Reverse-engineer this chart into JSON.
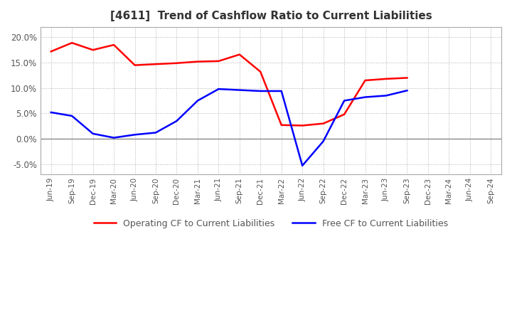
{
  "title": "[4611]  Trend of Cashflow Ratio to Current Liabilities",
  "x_labels": [
    "Jun-19",
    "Sep-19",
    "Dec-19",
    "Mar-20",
    "Jun-20",
    "Sep-20",
    "Dec-20",
    "Mar-21",
    "Jun-21",
    "Sep-21",
    "Dec-21",
    "Mar-22",
    "Jun-22",
    "Sep-22",
    "Dec-22",
    "Mar-23",
    "Jun-23",
    "Sep-23",
    "Dec-23",
    "Mar-24",
    "Jun-24",
    "Sep-24"
  ],
  "operating_cf": [
    17.2,
    18.9,
    17.5,
    18.5,
    14.5,
    14.7,
    14.9,
    15.2,
    15.3,
    16.6,
    13.2,
    2.7,
    2.6,
    3.0,
    4.8,
    11.5,
    11.8,
    12.0,
    null,
    null,
    null,
    null
  ],
  "free_cf": [
    5.2,
    4.5,
    1.0,
    0.2,
    0.8,
    1.2,
    3.5,
    7.5,
    9.8,
    9.6,
    9.4,
    9.4,
    -5.3,
    -0.5,
    7.5,
    8.2,
    8.5,
    9.5,
    null,
    null,
    null,
    null
  ],
  "operating_cf_color": "#ff0000",
  "free_cf_color": "#0000ff",
  "ylim": [
    -7.0,
    22.0
  ],
  "yticks": [
    -5.0,
    0.0,
    5.0,
    10.0,
    15.0,
    20.0
  ],
  "background_color": "#ffffff",
  "plot_bg_color": "#ffffff",
  "grid_color": "#b0b0b0",
  "legend_labels": [
    "Operating CF to Current Liabilities",
    "Free CF to Current Liabilities"
  ]
}
